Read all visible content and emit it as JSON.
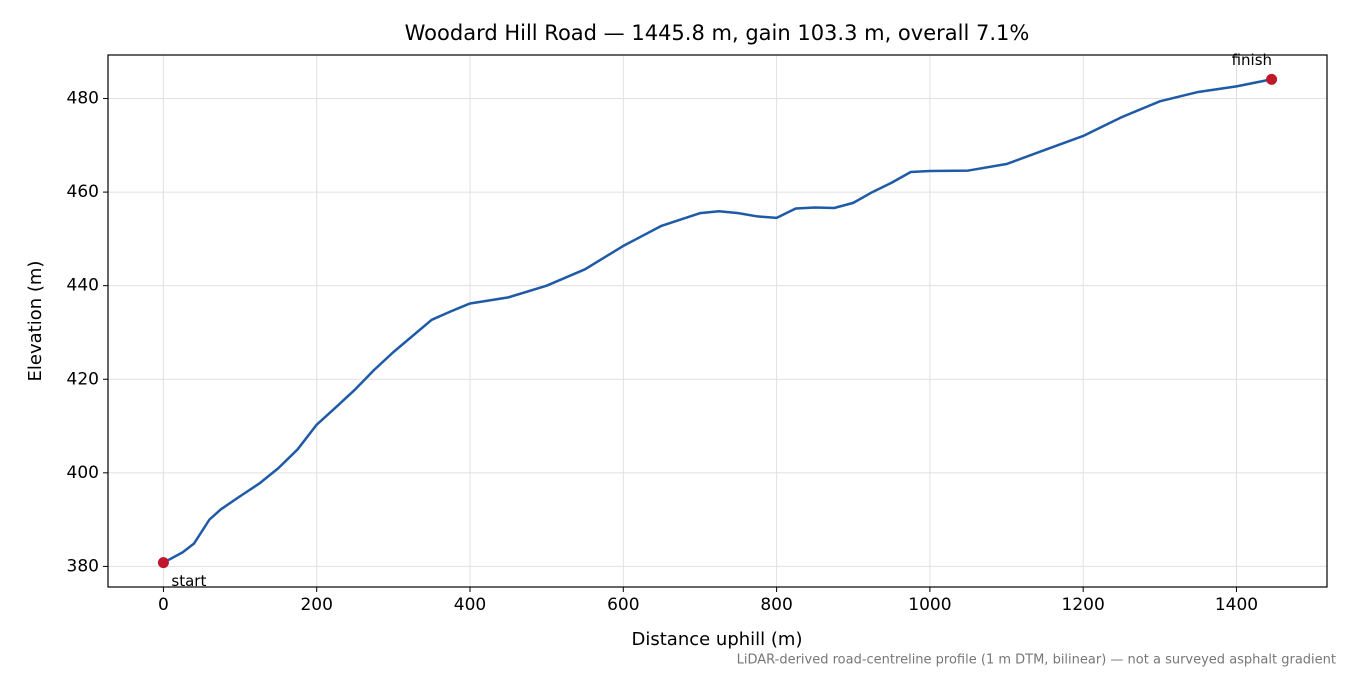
{
  "chart_data": {
    "type": "line",
    "title": "Woodard Hill Road — 1445.8 m, gain 103.3 m, overall 7.1%",
    "xlabel": "Distance uphill (m)",
    "ylabel": "Elevation (m)",
    "footnote": "LiDAR-derived road-centreline profile (1 m DTM, bilinear) — not a surveyed asphalt gradient",
    "annotations": [
      "start",
      "finish"
    ],
    "x": [
      0,
      25,
      40,
      60,
      75,
      100,
      125,
      150,
      175,
      200,
      225,
      250,
      275,
      300,
      350,
      375,
      400,
      450,
      500,
      550,
      600,
      650,
      700,
      725,
      750,
      775,
      800,
      825,
      850,
      875,
      900,
      925,
      950,
      975,
      1000,
      1050,
      1100,
      1150,
      1200,
      1250,
      1300,
      1350,
      1400,
      1445.8
    ],
    "series": [
      {
        "name": "Elevation",
        "color": "#1f5aa6",
        "marker_color": "#c0182a",
        "values": [
          380.8,
          383,
          384.9,
          390,
          392.2,
          395,
          397.7,
          401,
          405,
          410.3,
          414,
          417.8,
          422,
          425.8,
          432.7,
          434.5,
          436.2,
          437.5,
          440,
          443.5,
          448.5,
          452.8,
          455.5,
          455.9,
          455.5,
          454.8,
          454.5,
          456.5,
          456.7,
          456.6,
          457.7,
          460,
          462,
          464.3,
          464.5,
          464.6,
          466,
          469,
          472,
          476,
          479.4,
          481.4,
          482.6,
          484.1
        ]
      }
    ],
    "xlim": [
      -72.3,
      1518.1
    ],
    "ylim": [
      375.6,
      489.3
    ],
    "xticks": [
      0,
      200,
      400,
      600,
      800,
      1000,
      1200,
      1400
    ],
    "yticks": [
      380,
      400,
      420,
      440,
      460,
      480
    ],
    "grid": true
  }
}
